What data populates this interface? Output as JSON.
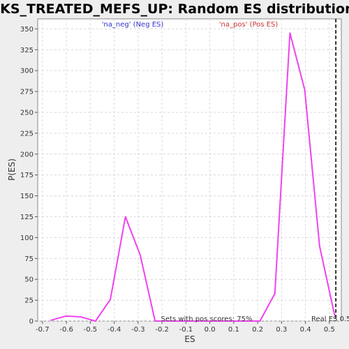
{
  "chart_data": {
    "type": "line",
    "title": "JACKS_TREATED_MEFS_UP: Random ES distribution",
    "xlabel": "ES",
    "ylabel": "P(ES)",
    "xlim": [
      -0.72,
      0.55
    ],
    "ylim": [
      0,
      362
    ],
    "x_ticks": [
      "-0.7",
      "-0.6",
      "-0.5",
      "-0.4",
      "-0.3",
      "-0.2",
      "-0.1",
      "0.0",
      "0.1",
      "0.2",
      "0.3",
      "0.4",
      "0.5"
    ],
    "x_tick_values": [
      -0.7,
      -0.6,
      -0.5,
      -0.4,
      -0.3,
      -0.2,
      -0.1,
      0.0,
      0.1,
      0.2,
      0.3,
      0.4,
      0.5
    ],
    "y_ticks": [
      "0",
      "25",
      "50",
      "75",
      "100",
      "125",
      "150",
      "175",
      "200",
      "225",
      "250",
      "275",
      "300",
      "325",
      "350"
    ],
    "y_tick_values": [
      0,
      25,
      50,
      75,
      100,
      125,
      150,
      175,
      200,
      225,
      250,
      275,
      300,
      325,
      350
    ],
    "series": [
      {
        "name": "Random ES distribution",
        "color": "#ee44ee",
        "x": [
          -0.665,
          -0.602,
          -0.54,
          -0.478,
          -0.416,
          -0.353,
          -0.291,
          -0.229,
          0.21,
          0.272,
          0.335,
          0.397,
          0.459,
          0.522
        ],
        "y": [
          1,
          6,
          5,
          0,
          26,
          125,
          79,
          0,
          0,
          33,
          345,
          277,
          90,
          7
        ]
      }
    ],
    "legend": [
      {
        "label": "'na_neg' (Neg ES)",
        "color": "#3333cc"
      },
      {
        "label": "'na_pos' (Pos ES)",
        "color": "#cc3333"
      }
    ],
    "annotations": {
      "pos_scores": "Sets with pos scores: 75%",
      "real_es_label": "Real ES 0.5",
      "real_es_value": 0.527
    },
    "grid": true,
    "colors": {
      "background": "#eeeeee",
      "plot_background": "#ffffff",
      "line": "#ee44ee",
      "marker_line": "#333333"
    }
  }
}
